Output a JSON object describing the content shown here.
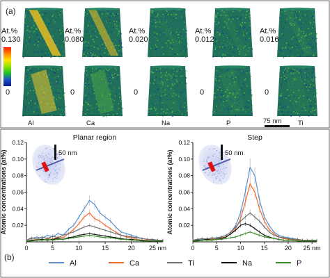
{
  "panel_a": {
    "label": "(a)",
    "scale_bar": "75 nm",
    "zero_label": "0",
    "colorbar_colors": [
      "#ff1a00",
      "#ff8a00",
      "#ffe400",
      "#8fe000",
      "#20c030",
      "#2050c8",
      "#0a1a8a"
    ],
    "maxima": [
      {
        "prefix": "At.%",
        "value": "0.130"
      },
      {
        "prefix": "At.%",
        "value": "0.080"
      },
      {
        "prefix": "At.%",
        "value": "0.020"
      },
      {
        "prefix": "At.%",
        "value": "0.012"
      },
      {
        "prefix": "At.%",
        "value": "0.016"
      }
    ],
    "elements": [
      "Al",
      "Ca",
      "Na",
      "P",
      "Ti"
    ]
  },
  "panel_b": {
    "label": "(b)",
    "legend": [
      {
        "name": "Al",
        "color": "#5b8fc8"
      },
      {
        "name": "Ca",
        "color": "#ee6a30"
      },
      {
        "name": "Ti",
        "color": "#707070"
      },
      {
        "name": "Na",
        "color": "#111111"
      },
      {
        "name": "P",
        "color": "#3a8a2a"
      }
    ],
    "inset_scale": "50 nm"
  },
  "chart_data": [
    {
      "type": "line",
      "title": "Planar region",
      "ylabel": "Atomic concentrations (at%)",
      "xlabel": "",
      "x_unit": "nm",
      "xlim": [
        0,
        26
      ],
      "ylim": [
        0,
        0.12
      ],
      "xticks": [
        0,
        5,
        10,
        15,
        20,
        25
      ],
      "yticks": [
        0.02,
        0.04,
        0.06,
        0.08,
        0.1,
        0.12
      ],
      "grid": false,
      "x": [
        0,
        1,
        2,
        3,
        4,
        5,
        6,
        7,
        8,
        9,
        10,
        11,
        12,
        13,
        14,
        15,
        16,
        17,
        18,
        19,
        20,
        21,
        22,
        23,
        24,
        25,
        26
      ],
      "series": [
        {
          "name": "Al",
          "values": [
            0.002,
            0.004,
            0.006,
            0.004,
            0.008,
            0.006,
            0.01,
            0.008,
            0.015,
            0.02,
            0.03,
            0.04,
            0.05,
            0.045,
            0.035,
            0.03,
            0.025,
            0.018,
            0.012,
            0.01,
            0.008,
            0.006,
            0.004,
            0.003,
            0.002,
            0.002,
            0.001
          ]
        },
        {
          "name": "Ca",
          "values": [
            0.001,
            0.002,
            0.003,
            0.002,
            0.004,
            0.003,
            0.006,
            0.005,
            0.01,
            0.015,
            0.022,
            0.03,
            0.035,
            0.028,
            0.025,
            0.02,
            0.016,
            0.012,
            0.008,
            0.006,
            0.005,
            0.003,
            0.002,
            0.002,
            0.001,
            0.001,
            0.001
          ]
        },
        {
          "name": "Ti",
          "values": [
            0.002,
            0.005,
            0.003,
            0.006,
            0.004,
            0.007,
            0.005,
            0.008,
            0.01,
            0.012,
            0.015,
            0.018,
            0.02,
            0.018,
            0.016,
            0.014,
            0.012,
            0.01,
            0.008,
            0.007,
            0.006,
            0.005,
            0.004,
            0.003,
            0.003,
            0.002,
            0.002
          ]
        },
        {
          "name": "Na",
          "values": [
            0.001,
            0.002,
            0.002,
            0.003,
            0.002,
            0.003,
            0.004,
            0.003,
            0.005,
            0.006,
            0.008,
            0.009,
            0.01,
            0.009,
            0.008,
            0.007,
            0.006,
            0.005,
            0.004,
            0.003,
            0.003,
            0.002,
            0.002,
            0.001,
            0.001,
            0.001,
            0.001
          ]
        },
        {
          "name": "P",
          "values": [
            0.001,
            0.001,
            0.002,
            0.002,
            0.003,
            0.002,
            0.003,
            0.003,
            0.004,
            0.005,
            0.006,
            0.007,
            0.008,
            0.007,
            0.006,
            0.005,
            0.005,
            0.004,
            0.003,
            0.003,
            0.002,
            0.002,
            0.001,
            0.001,
            0.001,
            0.001,
            0.001
          ]
        }
      ]
    },
    {
      "type": "line",
      "title": "Step",
      "ylabel": "Atomic concentrations (at%)",
      "xlabel": "",
      "x_unit": "nm",
      "xlim": [
        0,
        26
      ],
      "ylim": [
        0,
        0.12
      ],
      "xticks": [
        0,
        5,
        10,
        15,
        20,
        25
      ],
      "yticks": [
        0.02,
        0.04,
        0.06,
        0.08,
        0.1,
        0.12
      ],
      "grid": false,
      "x": [
        0,
        1,
        2,
        3,
        4,
        5,
        6,
        7,
        8,
        9,
        10,
        11,
        12,
        13,
        14,
        15,
        16,
        17,
        18,
        19,
        20,
        21,
        22,
        23,
        24,
        25,
        26
      ],
      "series": [
        {
          "name": "Al",
          "values": [
            0.002,
            0.003,
            0.003,
            0.004,
            0.004,
            0.005,
            0.006,
            0.008,
            0.012,
            0.02,
            0.035,
            0.06,
            0.09,
            0.08,
            0.05,
            0.03,
            0.02,
            0.012,
            0.008,
            0.006,
            0.005,
            0.004,
            0.003,
            0.002,
            0.002,
            0.002,
            0.001
          ]
        },
        {
          "name": "Ca",
          "values": [
            0.001,
            0.002,
            0.002,
            0.003,
            0.003,
            0.004,
            0.005,
            0.006,
            0.01,
            0.016,
            0.028,
            0.048,
            0.07,
            0.06,
            0.04,
            0.025,
            0.015,
            0.01,
            0.006,
            0.004,
            0.003,
            0.003,
            0.002,
            0.002,
            0.001,
            0.001,
            0.001
          ]
        },
        {
          "name": "Ti",
          "values": [
            0.002,
            0.003,
            0.004,
            0.003,
            0.005,
            0.004,
            0.006,
            0.008,
            0.012,
            0.018,
            0.025,
            0.03,
            0.035,
            0.03,
            0.025,
            0.018,
            0.012,
            0.008,
            0.006,
            0.005,
            0.004,
            0.003,
            0.003,
            0.002,
            0.002,
            0.002,
            0.002
          ]
        },
        {
          "name": "Na",
          "values": [
            0.001,
            0.002,
            0.002,
            0.003,
            0.002,
            0.003,
            0.004,
            0.006,
            0.01,
            0.014,
            0.02,
            0.022,
            0.02,
            0.016,
            0.012,
            0.008,
            0.006,
            0.004,
            0.003,
            0.002,
            0.002,
            0.002,
            0.001,
            0.001,
            0.001,
            0.001,
            0.001
          ]
        },
        {
          "name": "P",
          "values": [
            0.001,
            0.001,
            0.002,
            0.002,
            0.002,
            0.003,
            0.003,
            0.004,
            0.005,
            0.006,
            0.008,
            0.01,
            0.012,
            0.01,
            0.008,
            0.006,
            0.005,
            0.004,
            0.003,
            0.002,
            0.002,
            0.002,
            0.001,
            0.001,
            0.001,
            0.001,
            0.001
          ]
        }
      ]
    }
  ]
}
